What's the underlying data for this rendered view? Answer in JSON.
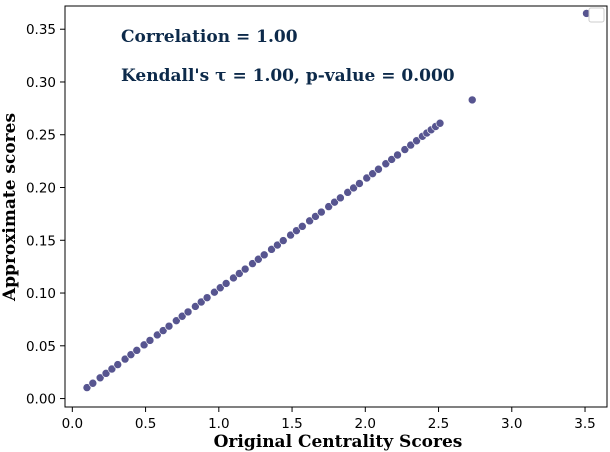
{
  "chart_data": {
    "type": "scatter",
    "title": "",
    "xlabel": "Original Centrality Scores",
    "ylabel": "Approximate scores",
    "xlim": [
      -0.05,
      3.65
    ],
    "ylim": [
      -0.008,
      0.372
    ],
    "xticks": [
      "0.0",
      "0.5",
      "1.0",
      "1.5",
      "2.0",
      "2.5",
      "3.0",
      "3.5"
    ],
    "yticks": [
      "0.00",
      "0.05",
      "0.10",
      "0.15",
      "0.20",
      "0.25",
      "0.30",
      "0.35"
    ],
    "grid": false,
    "legend": "top-right",
    "marker_color": "#575590",
    "annotation_color": "#0d2a4a",
    "annotations": [
      "Correlation = 1.00",
      "Kendall's τ = 1.00, p-value = 0.000"
    ],
    "series": [
      {
        "points": [
          [
            0.1,
            0.0104
          ],
          [
            0.14,
            0.0145
          ],
          [
            0.19,
            0.0197
          ],
          [
            0.23,
            0.0239
          ],
          [
            0.27,
            0.028
          ],
          [
            0.31,
            0.0322
          ],
          [
            0.36,
            0.0374
          ],
          [
            0.4,
            0.0416
          ],
          [
            0.44,
            0.0457
          ],
          [
            0.49,
            0.0509
          ],
          [
            0.53,
            0.0551
          ],
          [
            0.58,
            0.0603
          ],
          [
            0.62,
            0.0644
          ],
          [
            0.66,
            0.0686
          ],
          [
            0.71,
            0.0738
          ],
          [
            0.75,
            0.078
          ],
          [
            0.79,
            0.0821
          ],
          [
            0.84,
            0.0873
          ],
          [
            0.88,
            0.0915
          ],
          [
            0.92,
            0.0956
          ],
          [
            0.97,
            0.1008
          ],
          [
            1.01,
            0.105
          ],
          [
            1.05,
            0.1091
          ],
          [
            1.1,
            0.1143
          ],
          [
            1.14,
            0.1185
          ],
          [
            1.18,
            0.1227
          ],
          [
            1.23,
            0.1279
          ],
          [
            1.27,
            0.132
          ],
          [
            1.31,
            0.1362
          ],
          [
            1.36,
            0.1414
          ],
          [
            1.4,
            0.1455
          ],
          [
            1.44,
            0.1497
          ],
          [
            1.49,
            0.1549
          ],
          [
            1.53,
            0.1591
          ],
          [
            1.57,
            0.1632
          ],
          [
            1.62,
            0.1684
          ],
          [
            1.66,
            0.1726
          ],
          [
            1.7,
            0.1767
          ],
          [
            1.75,
            0.1819
          ],
          [
            1.79,
            0.1861
          ],
          [
            1.83,
            0.1902
          ],
          [
            1.88,
            0.1954
          ],
          [
            1.92,
            0.1996
          ],
          [
            1.96,
            0.2038
          ],
          [
            2.01,
            0.209
          ],
          [
            2.05,
            0.2131
          ],
          [
            2.09,
            0.2173
          ],
          [
            2.14,
            0.2225
          ],
          [
            2.18,
            0.2266
          ],
          [
            2.22,
            0.2308
          ],
          [
            2.27,
            0.236
          ],
          [
            2.31,
            0.2402
          ],
          [
            2.35,
            0.2443
          ],
          [
            2.39,
            0.2485
          ],
          [
            2.42,
            0.2516
          ],
          [
            2.45,
            0.2547
          ],
          [
            2.48,
            0.2578
          ],
          [
            2.51,
            0.2609
          ],
          [
            2.73,
            0.283
          ],
          [
            3.51,
            0.365
          ]
        ]
      }
    ]
  }
}
